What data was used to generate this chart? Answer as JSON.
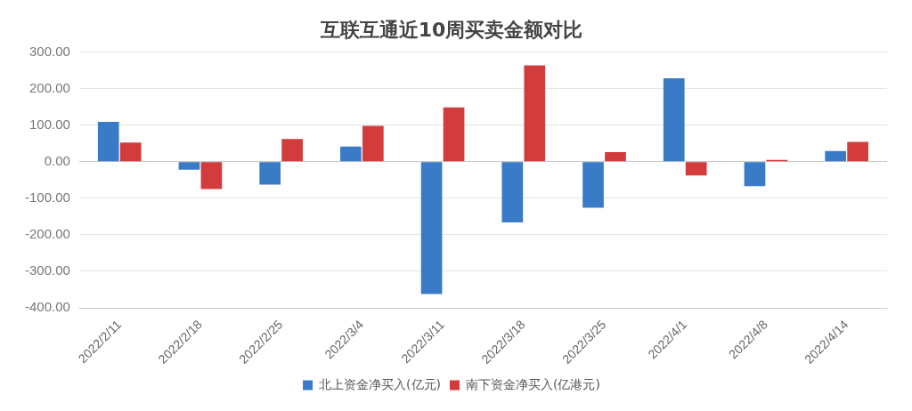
{
  "chart_data": {
    "type": "bar",
    "title": "互联互通近10周买卖金额对比",
    "categories": [
      "2022/2/11",
      "2022/2/18",
      "2022/2/25",
      "2022/3/4",
      "2022/3/11",
      "2022/3/18",
      "2022/3/25",
      "2022/4/1",
      "2022/4/8",
      "2022/4/14"
    ],
    "series": [
      {
        "name": "北上资金净买入(亿元)",
        "color": "#3a7bc8",
        "values": [
          109,
          -22,
          -63,
          41,
          -362,
          -166,
          -126,
          228,
          -67,
          29
        ]
      },
      {
        "name": "南下资金净买入(亿港元)",
        "color": "#d23c3c",
        "values": [
          52,
          -75,
          62,
          98,
          148,
          263,
          26,
          -38,
          5,
          54
        ]
      }
    ],
    "ylim": [
      -400,
      300
    ],
    "yticks": [
      {
        "value": -400,
        "label": "-400.00"
      },
      {
        "value": -300,
        "label": "-300.00"
      },
      {
        "value": -200,
        "label": "-200.00"
      },
      {
        "value": -100,
        "label": "-100.00"
      },
      {
        "value": 0,
        "label": "0.00"
      },
      {
        "value": 100,
        "label": "100.00"
      },
      {
        "value": 200,
        "label": "200.00"
      },
      {
        "value": 300,
        "label": "300.00"
      }
    ],
    "grid": "y",
    "legend": "bottom"
  }
}
